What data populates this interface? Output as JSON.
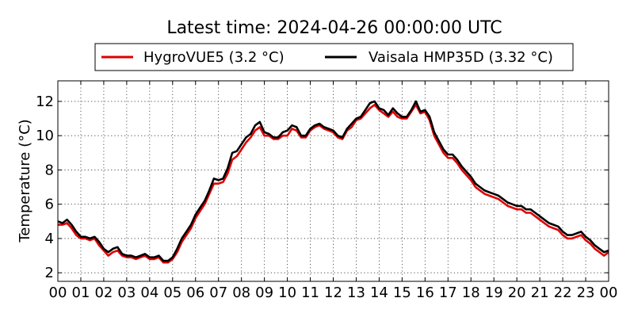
{
  "chart_data": {
    "type": "line",
    "title": "Latest time: 2024-04-26 00:00:00 UTC",
    "xlabel": "",
    "ylabel": "Temperature (°C)",
    "xlim": [
      0,
      24
    ],
    "ylim": [
      1.5,
      13.2
    ],
    "x_ticks": [
      0,
      1,
      2,
      3,
      4,
      5,
      6,
      7,
      8,
      9,
      10,
      11,
      12,
      13,
      14,
      15,
      16,
      17,
      18,
      19,
      20,
      21,
      22,
      23,
      24
    ],
    "x_tick_labels": [
      "00",
      "01",
      "02",
      "03",
      "04",
      "05",
      "06",
      "07",
      "08",
      "09",
      "10",
      "11",
      "12",
      "13",
      "14",
      "15",
      "16",
      "17",
      "18",
      "19",
      "20",
      "21",
      "22",
      "23",
      "00"
    ],
    "y_ticks": [
      2,
      4,
      6,
      8,
      10,
      12
    ],
    "y_tick_labels": [
      "2",
      "4",
      "6",
      "8",
      "10",
      "12"
    ],
    "grid": true,
    "legend_position": "top",
    "x": [
      0.0,
      0.2,
      0.4,
      0.6,
      0.8,
      1.0,
      1.2,
      1.4,
      1.6,
      1.8,
      2.0,
      2.2,
      2.4,
      2.6,
      2.8,
      3.0,
      3.2,
      3.4,
      3.6,
      3.8,
      4.0,
      4.2,
      4.4,
      4.6,
      4.8,
      5.0,
      5.2,
      5.4,
      5.6,
      5.8,
      6.0,
      6.2,
      6.4,
      6.6,
      6.8,
      7.0,
      7.2,
      7.4,
      7.6,
      7.8,
      8.0,
      8.2,
      8.4,
      8.6,
      8.8,
      9.0,
      9.2,
      9.4,
      9.6,
      9.8,
      10.0,
      10.2,
      10.4,
      10.6,
      10.8,
      11.0,
      11.2,
      11.4,
      11.6,
      11.8,
      12.0,
      12.2,
      12.4,
      12.6,
      12.8,
      13.0,
      13.2,
      13.4,
      13.6,
      13.8,
      14.0,
      14.2,
      14.4,
      14.6,
      14.8,
      15.0,
      15.2,
      15.4,
      15.6,
      15.8,
      16.0,
      16.2,
      16.4,
      16.6,
      16.8,
      17.0,
      17.2,
      17.4,
      17.6,
      17.8,
      18.0,
      18.2,
      18.4,
      18.6,
      18.8,
      19.0,
      19.2,
      19.4,
      19.6,
      19.8,
      20.0,
      20.2,
      20.4,
      20.6,
      20.8,
      21.0,
      21.2,
      21.4,
      21.6,
      21.8,
      22.0,
      22.2,
      22.4,
      22.6,
      22.8,
      23.0,
      23.2,
      23.4,
      23.6,
      23.8,
      24.0
    ],
    "series": [
      {
        "name": "HygroVUE5 (3.2 °C)",
        "color": "#e00000",
        "values": [
          4.8,
          4.8,
          4.9,
          4.6,
          4.2,
          4.0,
          4.0,
          3.9,
          4.0,
          3.6,
          3.3,
          3.0,
          3.2,
          3.3,
          3.0,
          2.9,
          2.9,
          2.8,
          2.9,
          3.0,
          2.8,
          2.8,
          2.9,
          2.6,
          2.6,
          2.8,
          3.2,
          3.8,
          4.2,
          4.6,
          5.2,
          5.6,
          6.0,
          6.6,
          7.2,
          7.2,
          7.3,
          7.8,
          8.6,
          8.8,
          9.2,
          9.6,
          9.9,
          10.3,
          10.5,
          10.0,
          10.0,
          9.8,
          9.8,
          10.0,
          10.0,
          10.4,
          10.3,
          9.9,
          9.9,
          10.3,
          10.5,
          10.6,
          10.4,
          10.3,
          10.2,
          9.9,
          9.8,
          10.3,
          10.5,
          10.9,
          11.0,
          11.3,
          11.6,
          11.8,
          11.5,
          11.3,
          11.1,
          11.4,
          11.1,
          11.0,
          11.0,
          11.4,
          11.8,
          11.3,
          11.4,
          10.9,
          10.0,
          9.5,
          9.0,
          8.7,
          8.7,
          8.4,
          8.0,
          7.7,
          7.4,
          7.0,
          6.8,
          6.6,
          6.5,
          6.4,
          6.3,
          6.1,
          5.9,
          5.8,
          5.7,
          5.7,
          5.5,
          5.5,
          5.3,
          5.1,
          4.9,
          4.7,
          4.6,
          4.5,
          4.2,
          4.0,
          4.0,
          4.1,
          4.2,
          3.9,
          3.7,
          3.4,
          3.2,
          3.0,
          3.2
        ]
      },
      {
        "name": "Vaisala HMP35D (3.32 °C)",
        "color": "#000000",
        "values": [
          5.0,
          4.9,
          5.1,
          4.8,
          4.4,
          4.1,
          4.1,
          4.0,
          4.1,
          3.8,
          3.4,
          3.2,
          3.4,
          3.5,
          3.1,
          3.0,
          3.0,
          2.9,
          3.0,
          3.1,
          2.9,
          2.9,
          3.0,
          2.7,
          2.7,
          2.9,
          3.4,
          4.0,
          4.4,
          4.8,
          5.4,
          5.8,
          6.2,
          6.8,
          7.5,
          7.4,
          7.5,
          8.1,
          9.0,
          9.1,
          9.5,
          9.9,
          10.1,
          10.6,
          10.8,
          10.2,
          10.1,
          9.9,
          9.9,
          10.2,
          10.3,
          10.6,
          10.5,
          10.0,
          10.0,
          10.4,
          10.6,
          10.7,
          10.5,
          10.4,
          10.3,
          10.0,
          9.9,
          10.4,
          10.7,
          11.0,
          11.1,
          11.5,
          11.9,
          12.0,
          11.6,
          11.5,
          11.2,
          11.6,
          11.3,
          11.1,
          11.1,
          11.5,
          12.0,
          11.4,
          11.5,
          11.1,
          10.2,
          9.7,
          9.2,
          8.9,
          8.9,
          8.6,
          8.2,
          7.9,
          7.6,
          7.2,
          7.0,
          6.8,
          6.7,
          6.6,
          6.5,
          6.3,
          6.1,
          6.0,
          5.9,
          5.9,
          5.7,
          5.7,
          5.5,
          5.3,
          5.1,
          4.9,
          4.8,
          4.7,
          4.4,
          4.2,
          4.2,
          4.3,
          4.4,
          4.1,
          3.9,
          3.6,
          3.4,
          3.2,
          3.3
        ]
      }
    ]
  }
}
